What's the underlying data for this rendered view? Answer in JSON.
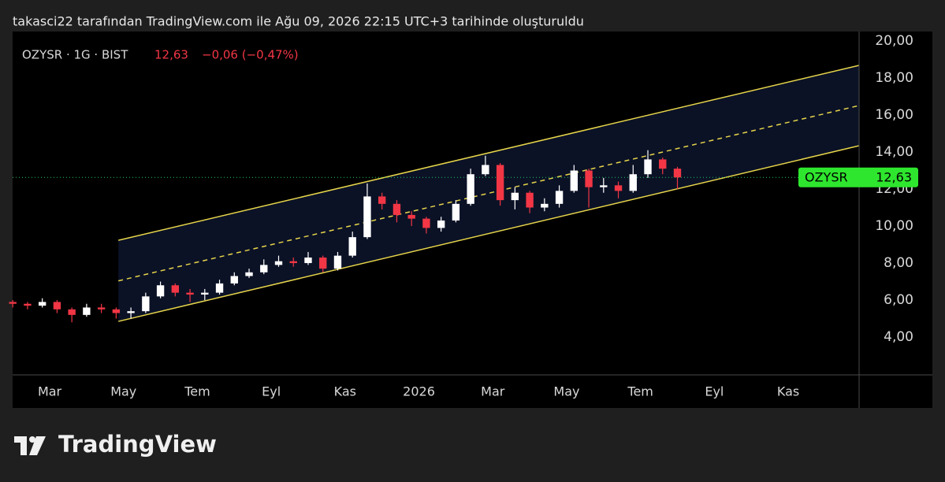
{
  "header": "takasci22 tarafından TradingView.com ile Ağu 09, 2026 22:15 UTC+3 tarihinde oluşturuldu",
  "brand": "TradingView",
  "chart_data": {
    "type": "candlestick",
    "legend_symbol": "OZYSR · 1G · BIST",
    "symbol": "OZYSR",
    "last": {
      "value": 12.63,
      "label": "12,63"
    },
    "change": "−0,06 (−0,47%)",
    "up_color": "#ffffff",
    "down_color": "#f23645",
    "price_line_color": "#22c55e",
    "label_color": "#2ee62e",
    "series": [
      {
        "name": "OZYSR",
        "x": [
          1.0,
          1.4,
          1.8,
          2.2,
          2.6,
          3.0,
          3.4,
          3.8,
          4.2,
          4.6,
          5.0,
          5.4,
          5.8,
          6.2,
          6.6,
          7.0,
          7.4,
          7.8,
          8.2,
          8.6,
          9.0,
          9.4,
          9.8,
          10.2,
          10.6,
          11.0,
          11.4,
          11.8,
          12.2,
          12.6,
          13.0,
          13.4,
          13.8,
          14.2,
          14.6,
          15.0,
          15.4,
          15.8,
          16.2,
          16.6,
          17.0,
          17.4,
          17.8,
          18.2,
          18.6,
          19.0
        ],
        "open": [
          5.9,
          5.8,
          5.7,
          5.9,
          5.5,
          5.2,
          5.6,
          5.5,
          5.3,
          5.4,
          6.2,
          6.8,
          6.4,
          6.3,
          6.4,
          6.9,
          7.3,
          7.5,
          7.9,
          8.1,
          8.0,
          8.3,
          7.7,
          8.4,
          9.4,
          11.6,
          11.2,
          10.6,
          10.4,
          9.9,
          10.3,
          11.2,
          12.8,
          13.3,
          11.4,
          11.8,
          11.0,
          11.2,
          11.9,
          13.0,
          12.1,
          12.2,
          11.9,
          12.8,
          13.6,
          13.1
        ],
        "high": [
          6.0,
          5.9,
          6.1,
          6.0,
          5.6,
          5.8,
          5.8,
          5.6,
          5.6,
          6.4,
          7.0,
          6.9,
          6.6,
          6.6,
          7.1,
          7.5,
          7.7,
          8.2,
          8.4,
          8.3,
          8.6,
          8.4,
          8.6,
          9.7,
          12.3,
          11.8,
          11.4,
          10.8,
          10.5,
          10.5,
          11.4,
          13.1,
          13.8,
          13.4,
          12.1,
          11.9,
          11.5,
          12.2,
          13.3,
          13.1,
          12.6,
          12.4,
          13.3,
          14.1,
          13.7,
          13.2
        ],
        "low": [
          5.6,
          5.5,
          5.6,
          5.3,
          4.8,
          5.1,
          5.3,
          5.0,
          5.0,
          5.3,
          6.1,
          6.2,
          5.9,
          6.0,
          6.3,
          6.8,
          7.2,
          7.4,
          7.8,
          7.8,
          7.9,
          7.5,
          7.6,
          8.3,
          9.3,
          10.9,
          10.2,
          10.0,
          9.6,
          9.7,
          10.2,
          11.1,
          12.7,
          11.1,
          10.9,
          10.7,
          10.8,
          11.0,
          11.8,
          11.0,
          11.8,
          11.5,
          11.8,
          12.6,
          12.8,
          12.0
        ],
        "close": [
          5.8,
          5.7,
          5.9,
          5.5,
          5.2,
          5.6,
          5.5,
          5.3,
          5.4,
          6.2,
          6.8,
          6.4,
          6.3,
          6.4,
          6.9,
          7.3,
          7.5,
          7.9,
          8.1,
          8.0,
          8.3,
          7.7,
          8.4,
          9.4,
          11.6,
          11.2,
          10.6,
          10.4,
          9.9,
          10.3,
          11.2,
          12.8,
          13.3,
          11.4,
          11.8,
          11.0,
          11.2,
          11.9,
          13.0,
          12.1,
          12.2,
          11.9,
          12.8,
          13.6,
          13.1,
          12.63
        ]
      }
    ],
    "channel": {
      "color": "#e6d44a",
      "fill": "#0b1226",
      "upper": {
        "x": [
          3.86,
          23.92
        ],
        "y": [
          9.23,
          18.68
        ]
      },
      "middle": {
        "x": [
          3.86,
          23.92
        ],
        "y": [
          7.04,
          16.51
        ]
      },
      "lower": {
        "x": [
          3.86,
          23.92
        ],
        "y": [
          4.85,
          14.34
        ]
      }
    },
    "xlim": [
      0.996,
      23.92
    ],
    "xticks": [
      {
        "value": 2,
        "label": "Mar"
      },
      {
        "value": 4,
        "label": "May"
      },
      {
        "value": 6,
        "label": "Tem"
      },
      {
        "value": 8,
        "label": "Eyl"
      },
      {
        "value": 10,
        "label": "Kas"
      },
      {
        "value": 12,
        "label": "2026"
      },
      {
        "value": 14,
        "label": "Mar"
      },
      {
        "value": 16,
        "label": "May"
      },
      {
        "value": 18,
        "label": "Tem"
      },
      {
        "value": 20,
        "label": "Eyl"
      },
      {
        "value": 22,
        "label": "Kas"
      }
    ],
    "ylim": [
      1.96,
      20.51
    ],
    "yticks": [
      {
        "value": 4,
        "label": "4,00"
      },
      {
        "value": 6,
        "label": "6,00"
      },
      {
        "value": 8,
        "label": "8,00"
      },
      {
        "value": 10,
        "label": "10,00"
      },
      {
        "value": 12,
        "label": "12,00"
      },
      {
        "value": 14,
        "label": "14,00"
      },
      {
        "value": 16,
        "label": "16,00"
      },
      {
        "value": 18,
        "label": "18,00"
      },
      {
        "value": 20,
        "label": "20,00"
      }
    ],
    "grid": false
  }
}
